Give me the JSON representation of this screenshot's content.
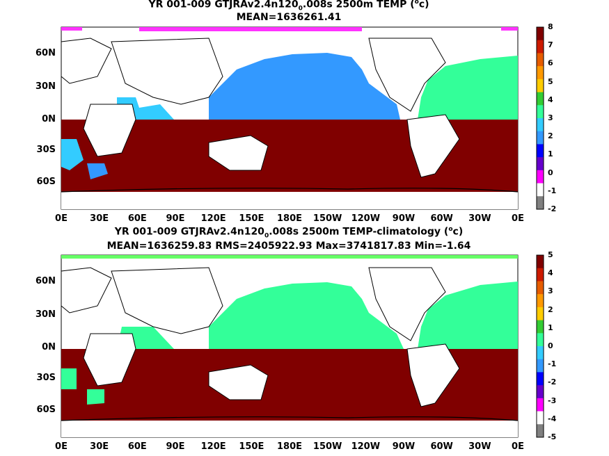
{
  "panels": [
    {
      "title_pre": "YR 001-009 GTJRAv2.4n120",
      "title_sub": "0",
      "title_post": ".008s 2500m TEMP (",
      "title_sup": "o",
      "title_end": "c)",
      "stats": "MEAN=1636261.41",
      "colorbar_ticks": [
        "8",
        "7",
        "6",
        "5",
        "4",
        "3",
        "2",
        "1",
        "0",
        "-1",
        "-2"
      ]
    },
    {
      "title_pre": "YR 001-009 GTJRAv2.4n120",
      "title_sub": "0",
      "title_post": ".008s 2500m TEMP-climatology (",
      "title_sup": "o",
      "title_end": "c)",
      "stats": "MEAN=1636259.83   RMS=2405922.93   Max=3741817.83   Min=-1.64",
      "colorbar_ticks": [
        "5",
        "4",
        "3",
        "2",
        "1",
        "0",
        "-1",
        "-2",
        "-3",
        "-4",
        "-5"
      ]
    }
  ],
  "lat_labels": [
    "60N",
    "30N",
    "0N",
    "30S",
    "60S"
  ],
  "lon_labels": [
    "0E",
    "30E",
    "60E",
    "90E",
    "120E",
    "150E",
    "180E",
    "150W",
    "120W",
    "90W",
    "60W",
    "30W",
    "0E"
  ],
  "colors": {
    "southern_fill": "#800000",
    "panel1_pacific": "#3399ff",
    "panel1_atlantic": "#33ff99",
    "panel1_indian": "#33ccff",
    "panel2_field": "#33ff99",
    "arctic_magenta": "#ff33ff",
    "colorbar": [
      "#800000",
      "#cc1a00",
      "#e65c00",
      "#ff9900",
      "#ffcc00",
      "#33cc33",
      "#33ff99",
      "#33ccff",
      "#3399ff",
      "#0000ff",
      "#6600cc",
      "#ff00ff",
      "#ffffff",
      "#808080"
    ]
  }
}
